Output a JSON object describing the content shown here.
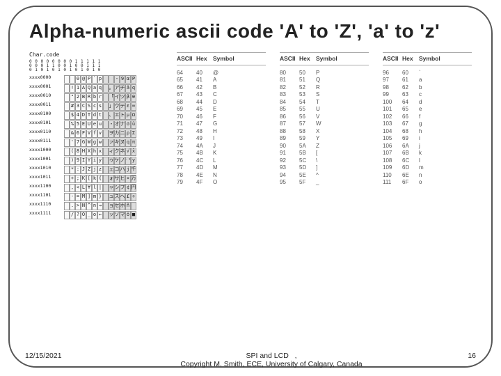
{
  "title": "Alpha-numeric ascii code 'A' to 'Z', 'a' to 'z'",
  "footer": {
    "date": "12/15/2021",
    "center1": "SPI and LCD",
    "center2": "Copyright M. Smith, ECE, University of Calgary, Canada",
    "page": "16"
  },
  "charcode": {
    "label": "Char.code",
    "topbits_l1": "0 0 0 0 0 0 0 0 1 1 1 1 1",
    "topbits_l2": "0 0 0 1 1 0 0 1 0 0 1 1 1",
    "topbits_l3": "0 1 0 1 0 1 0 1 0 1 0 1 0",
    "rows": [
      {
        "label": "xxxx0000",
        "cells": [
          "",
          "",
          "0",
          "@",
          "P",
          "`",
          "p",
          "",
          "",
          "-",
          "9",
          "α",
          "P"
        ]
      },
      {
        "label": "xxxx0001",
        "cells": [
          "",
          "!",
          "1",
          "A",
          "Q",
          "a",
          "q",
          "",
          "。",
          "ア",
          "チ",
          "ä",
          "q"
        ]
      },
      {
        "label": "xxxx0010",
        "cells": [
          "",
          "\"",
          "2",
          "B",
          "R",
          "b",
          "r",
          "",
          "「",
          "イ",
          "ツ",
          "β",
          "θ"
        ]
      },
      {
        "label": "xxxx0011",
        "cells": [
          "",
          "#",
          "3",
          "C",
          "S",
          "c",
          "s",
          "",
          "」",
          "ウ",
          "テ",
          "ε",
          "∞"
        ]
      },
      {
        "label": "xxxx0100",
        "cells": [
          "",
          "$",
          "4",
          "D",
          "T",
          "d",
          "t",
          "",
          "、",
          "エ",
          "ト",
          "μ",
          "Ω"
        ]
      },
      {
        "label": "xxxx0101",
        "cells": [
          "",
          "%",
          "5",
          "E",
          "U",
          "e",
          "u",
          "",
          "・",
          "オ",
          "ナ",
          "σ",
          "ü"
        ]
      },
      {
        "label": "xxxx0110",
        "cells": [
          "",
          "&",
          "6",
          "F",
          "V",
          "f",
          "v",
          "",
          "ヲ",
          "カ",
          "ニ",
          "ρ",
          "Σ"
        ]
      },
      {
        "label": "xxxx0111",
        "cells": [
          "",
          "'",
          "7",
          "G",
          "W",
          "g",
          "w",
          "",
          "ァ",
          "キ",
          "ヌ",
          "q",
          "π"
        ]
      },
      {
        "label": "xxxx1000",
        "cells": [
          "",
          "(",
          "8",
          "H",
          "X",
          "h",
          "x",
          "",
          "ィ",
          "ク",
          "ネ",
          "√",
          "x̄"
        ]
      },
      {
        "label": "xxxx1001",
        "cells": [
          "",
          ")",
          "9",
          "I",
          "Y",
          "i",
          "y",
          "",
          "ゥ",
          "ケ",
          "ノ",
          "⁻¹",
          "y"
        ]
      },
      {
        "label": "xxxx1010",
        "cells": [
          "",
          "*",
          ":",
          "J",
          "Z",
          "j",
          "z",
          "",
          "ェ",
          "コ",
          "ハ",
          "j",
          "千"
        ]
      },
      {
        "label": "xxxx1011",
        "cells": [
          "",
          "+",
          ";",
          "K",
          "[",
          "k",
          "{",
          "",
          "ォ",
          "サ",
          "ヒ",
          "×",
          "万"
        ]
      },
      {
        "label": "xxxx1100",
        "cells": [
          "",
          ",",
          "<",
          "L",
          "¥",
          "l",
          "|",
          "",
          "ャ",
          "シ",
          "フ",
          "¢",
          "円"
        ]
      },
      {
        "label": "xxxx1101",
        "cells": [
          "",
          "-",
          "=",
          "M",
          "]",
          "m",
          "}",
          "",
          "ュ",
          "ス",
          "ヘ",
          "£",
          "÷"
        ]
      },
      {
        "label": "xxxx1110",
        "cells": [
          "",
          ".",
          ">",
          "N",
          "^",
          "n",
          "→",
          "",
          "ョ",
          "セ",
          "ホ",
          "ñ",
          ""
        ]
      },
      {
        "label": "xxxx1111",
        "cells": [
          "",
          "/",
          "?",
          "O",
          "_",
          "o",
          "←",
          "",
          "ッ",
          "ソ",
          "マ",
          "ö",
          "■"
        ]
      }
    ]
  },
  "ascii": {
    "headers": [
      "ASCII",
      "Hex",
      "Symbol"
    ],
    "cols": [
      [
        {
          "a": "64",
          "h": "40",
          "s": "@"
        },
        {
          "a": "65",
          "h": "41",
          "s": "A"
        },
        {
          "a": "66",
          "h": "42",
          "s": "B"
        },
        {
          "a": "67",
          "h": "43",
          "s": "C"
        },
        {
          "a": "68",
          "h": "44",
          "s": "D"
        },
        {
          "a": "69",
          "h": "45",
          "s": "E"
        },
        {
          "a": "70",
          "h": "46",
          "s": "F"
        },
        {
          "a": "71",
          "h": "47",
          "s": "G"
        },
        {
          "a": "72",
          "h": "48",
          "s": "H"
        },
        {
          "a": "73",
          "h": "49",
          "s": "I"
        },
        {
          "a": "74",
          "h": "4A",
          "s": "J"
        },
        {
          "a": "75",
          "h": "4B",
          "s": "K"
        },
        {
          "a": "76",
          "h": "4C",
          "s": "L"
        },
        {
          "a": "77",
          "h": "4D",
          "s": "M"
        },
        {
          "a": "78",
          "h": "4E",
          "s": "N"
        },
        {
          "a": "79",
          "h": "4F",
          "s": "O"
        }
      ],
      [
        {
          "a": "80",
          "h": "50",
          "s": "P"
        },
        {
          "a": "81",
          "h": "51",
          "s": "Q"
        },
        {
          "a": "82",
          "h": "52",
          "s": "R"
        },
        {
          "a": "83",
          "h": "53",
          "s": "S"
        },
        {
          "a": "84",
          "h": "54",
          "s": "T"
        },
        {
          "a": "85",
          "h": "55",
          "s": "U"
        },
        {
          "a": "86",
          "h": "56",
          "s": "V"
        },
        {
          "a": "87",
          "h": "57",
          "s": "W"
        },
        {
          "a": "88",
          "h": "58",
          "s": "X"
        },
        {
          "a": "89",
          "h": "59",
          "s": "Y"
        },
        {
          "a": "90",
          "h": "5A",
          "s": "Z"
        },
        {
          "a": "91",
          "h": "5B",
          "s": "["
        },
        {
          "a": "92",
          "h": "5C",
          "s": "\\"
        },
        {
          "a": "93",
          "h": "5D",
          "s": "]"
        },
        {
          "a": "94",
          "h": "5E",
          "s": "^"
        },
        {
          "a": "95",
          "h": "5F",
          "s": "_"
        }
      ],
      [
        {
          "a": "96",
          "h": "60",
          "s": "`"
        },
        {
          "a": "97",
          "h": "61",
          "s": "a"
        },
        {
          "a": "98",
          "h": "62",
          "s": "b"
        },
        {
          "a": "99",
          "h": "63",
          "s": "c"
        },
        {
          "a": "100",
          "h": "64",
          "s": "d"
        },
        {
          "a": "101",
          "h": "65",
          "s": "e"
        },
        {
          "a": "102",
          "h": "66",
          "s": "f"
        },
        {
          "a": "103",
          "h": "67",
          "s": "g"
        },
        {
          "a": "104",
          "h": "68",
          "s": "h"
        },
        {
          "a": "105",
          "h": "69",
          "s": "i"
        },
        {
          "a": "106",
          "h": "6A",
          "s": "j"
        },
        {
          "a": "107",
          "h": "6B",
          "s": "k"
        },
        {
          "a": "108",
          "h": "6C",
          "s": "l"
        },
        {
          "a": "109",
          "h": "6D",
          "s": "m"
        },
        {
          "a": "110",
          "h": "6E",
          "s": "n"
        },
        {
          "a": "111",
          "h": "6F",
          "s": "o"
        }
      ]
    ]
  }
}
